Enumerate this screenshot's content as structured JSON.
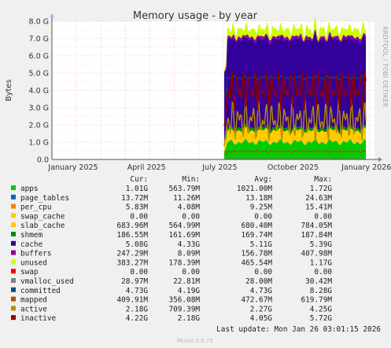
{
  "chart_data": {
    "type": "area",
    "title": "Memory usage - by year",
    "ylabel": "Bytes",
    "side_label": "RRDTOOL / TOBI OETIKER",
    "y_ticks": [
      "0.0",
      "1.0 G",
      "2.0 G",
      "3.0 G",
      "4.0 G",
      "5.0 G",
      "6.0 G",
      "7.0 G",
      "8.0 G"
    ],
    "ylim": [
      0,
      8.0
    ],
    "x_ticks": [
      "January 2025",
      "April 2025",
      "July 2025",
      "October 2025",
      "January 2026"
    ],
    "x_tick_months": [
      0,
      3,
      6,
      9,
      12
    ],
    "data_start_month": 7.05,
    "data_end_month": 12.85,
    "grid": true,
    "columns": [
      "Cur:",
      "Min:",
      "Avg:",
      "Max:"
    ],
    "series": [
      {
        "name": "apps",
        "color": "#00cc00",
        "values": {
          "cur": "1.01G",
          "min": "563.79M",
          "avg": "1021.00M",
          "max": "1.72G"
        }
      },
      {
        "name": "page_tables",
        "color": "#0066b3",
        "values": {
          "cur": "13.72M",
          "min": "11.26M",
          "avg": "13.18M",
          "max": "24.63M"
        }
      },
      {
        "name": "per_cpu",
        "color": "#ff8000",
        "values": {
          "cur": "5.83M",
          "min": "4.08M",
          "avg": "9.25M",
          "max": "15.41M"
        }
      },
      {
        "name": "swap_cache",
        "color": "#ffcc00",
        "values": {
          "cur": "0.00",
          "min": "0.00",
          "avg": "0.00",
          "max": "0.00"
        }
      },
      {
        "name": "slab_cache",
        "color": "#ffcc00",
        "values": {
          "cur": "683.96M",
          "min": "564.99M",
          "avg": "680.40M",
          "max": "784.05M"
        }
      },
      {
        "name": "shmem",
        "color": "#008f00",
        "values": {
          "cur": "186.55M",
          "min": "161.69M",
          "avg": "169.74M",
          "max": "187.84M"
        }
      },
      {
        "name": "cache",
        "color": "#330099",
        "values": {
          "cur": "5.08G",
          "min": "4.33G",
          "avg": "5.11G",
          "max": "5.39G"
        }
      },
      {
        "name": "buffers",
        "color": "#990099",
        "values": {
          "cur": "247.29M",
          "min": "8.09M",
          "avg": "156.78M",
          "max": "407.98M"
        }
      },
      {
        "name": "unused",
        "color": "#ccff00",
        "values": {
          "cur": "383.27M",
          "min": "178.39M",
          "avg": "465.54M",
          "max": "1.17G"
        }
      },
      {
        "name": "swap",
        "color": "#ff0000",
        "values": {
          "cur": "0.00",
          "min": "0.00",
          "avg": "0.00",
          "max": "0.00"
        }
      },
      {
        "name": "vmalloc_used",
        "color": "#808080",
        "values": {
          "cur": "28.97M",
          "min": "22.81M",
          "avg": "28.00M",
          "max": "30.42M"
        }
      },
      {
        "name": "committed",
        "color": "#004d80",
        "values": {
          "cur": "4.73G",
          "min": "4.19G",
          "avg": "4.73G",
          "max": "8.28G"
        }
      },
      {
        "name": "mapped",
        "color": "#b34d00",
        "values": {
          "cur": "409.91M",
          "min": "356.08M",
          "avg": "472.67M",
          "max": "619.79M"
        }
      },
      {
        "name": "active",
        "color": "#b38f00",
        "values": {
          "cur": "2.18G",
          "min": "709.39M",
          "avg": "2.27G",
          "max": "4.25G"
        }
      },
      {
        "name": "inactive",
        "color": "#8f0000",
        "values": {
          "cur": "4.22G",
          "min": "2.18G",
          "avg": "4.05G",
          "max": "5.72G"
        }
      }
    ],
    "last_update": "Last update: Mon Jan 26 03:01:15 2026",
    "footer": "Munin 2.0.75"
  }
}
